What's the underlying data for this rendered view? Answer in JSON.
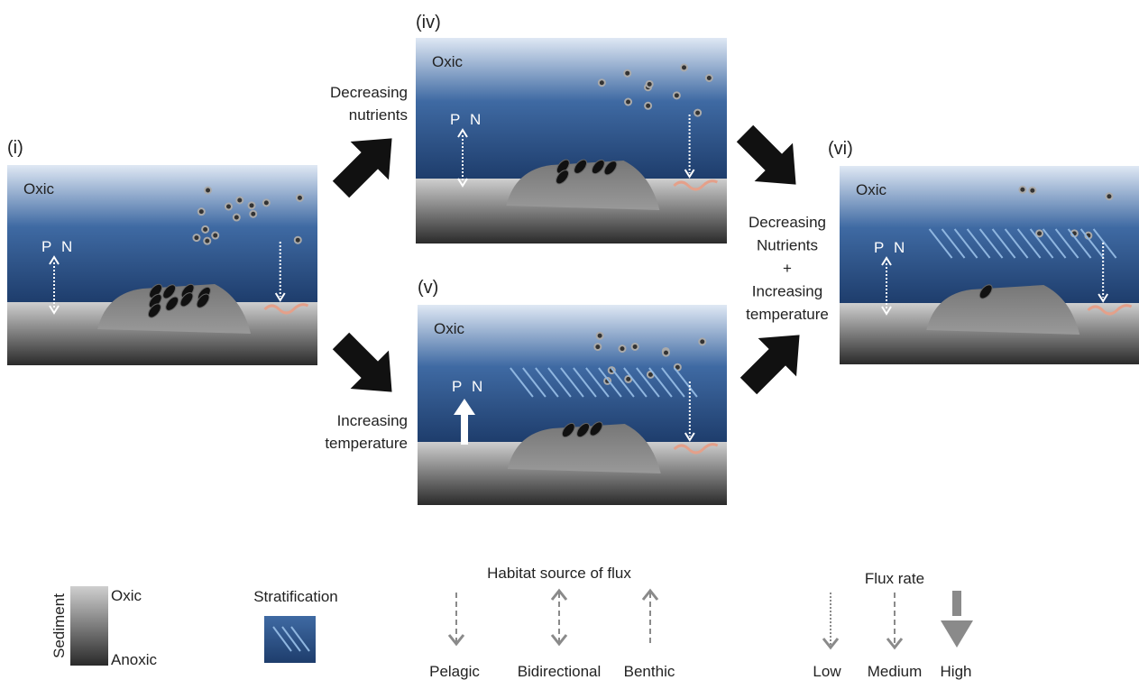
{
  "panels": [
    {
      "label": "(i)",
      "water_label": "Oxic",
      "p": "P",
      "n": "N"
    },
    {
      "label": "(iv)",
      "water_label": "Oxic",
      "p": "P",
      "n": "N"
    },
    {
      "label": "(v)",
      "water_label": "Oxic",
      "p": "P",
      "n": "N"
    },
    {
      "label": "(vi)",
      "water_label": "Oxic",
      "p": "P",
      "n": "N"
    }
  ],
  "transitions": [
    {
      "lines": [
        "Decreasing",
        "nutrients"
      ]
    },
    {
      "lines": [
        "Increasing",
        "temperature"
      ]
    },
    {
      "lines": [
        "Decreasing",
        "Nutrients",
        "+",
        "Increasing",
        "temperature"
      ]
    }
  ],
  "legend": {
    "sediment": {
      "title": "Sediment",
      "top": "Oxic",
      "bottom": "Anoxic"
    },
    "stratification": "Stratification",
    "habitat": {
      "title": "Habitat source of flux",
      "items": [
        "Pelagic",
        "Bidirectional",
        "Benthic"
      ]
    },
    "flux": {
      "title": "Flux rate",
      "items": [
        "Low",
        "Medium",
        "High"
      ]
    }
  }
}
